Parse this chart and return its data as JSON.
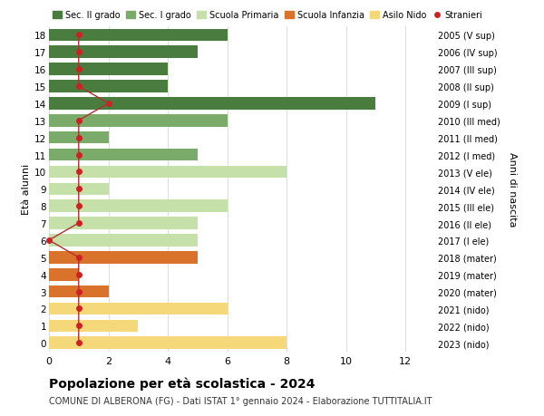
{
  "ages": [
    18,
    17,
    16,
    15,
    14,
    13,
    12,
    11,
    10,
    9,
    8,
    7,
    6,
    5,
    4,
    3,
    2,
    1,
    0
  ],
  "years": [
    "2005 (V sup)",
    "2006 (IV sup)",
    "2007 (III sup)",
    "2008 (II sup)",
    "2009 (I sup)",
    "2010 (III med)",
    "2011 (II med)",
    "2012 (I med)",
    "2013 (V ele)",
    "2014 (IV ele)",
    "2015 (III ele)",
    "2016 (II ele)",
    "2017 (I ele)",
    "2018 (mater)",
    "2019 (mater)",
    "2020 (mater)",
    "2021 (nido)",
    "2022 (nido)",
    "2023 (nido)"
  ],
  "values": [
    6,
    5,
    4,
    4,
    11,
    6,
    2,
    5,
    8,
    2,
    6,
    5,
    5,
    5,
    1,
    2,
    6,
    3,
    8
  ],
  "stranieri": [
    1,
    1,
    1,
    1,
    2,
    1,
    1,
    1,
    1,
    1,
    1,
    1,
    0,
    1,
    1,
    1,
    1,
    1,
    1
  ],
  "categories": {
    "sec2": [
      18,
      17,
      16,
      15,
      14
    ],
    "sec1": [
      13,
      12,
      11
    ],
    "primaria": [
      10,
      9,
      8,
      7,
      6
    ],
    "infanzia": [
      5,
      4,
      3
    ],
    "nido": [
      2,
      1,
      0
    ]
  },
  "colors": {
    "sec2": "#4a7c40",
    "sec1": "#7aab6a",
    "primaria": "#c5e0a8",
    "infanzia": "#d9722a",
    "nido": "#f5d87a"
  },
  "legend_labels": [
    "Sec. II grado",
    "Sec. I grado",
    "Scuola Primaria",
    "Scuola Infanzia",
    "Asilo Nido",
    "Stranieri"
  ],
  "stranieri_color": "#cc2222",
  "line_color": "#b03030",
  "title_main": "Popolazione per età scolastica - 2024",
  "title_sub": "COMUNE DI ALBERONA (FG) - Dati ISTAT 1° gennaio 2024 - Elaborazione TUTTITALIA.IT",
  "ylabel_left": "Età alunni",
  "ylabel_right": "Anni di nascita",
  "xlim": [
    0,
    13
  ],
  "bg_color": "#ffffff",
  "grid_color": "#dddddd"
}
